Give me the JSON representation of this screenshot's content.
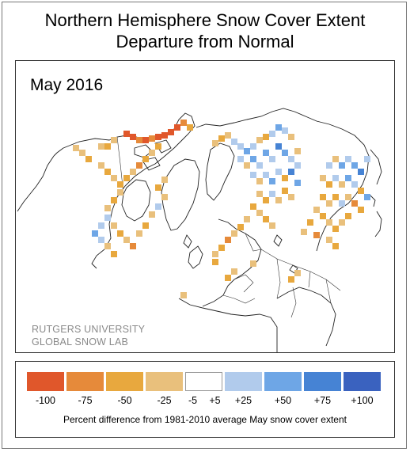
{
  "title_line1": "Northern Hemisphere Snow Cover Extent",
  "title_line2": "Departure from Normal",
  "date_label": "May 2016",
  "credit_line1": "RUTGERS UNIVERSITY",
  "credit_line2": "GLOBAL SNOW LAB",
  "legend": {
    "swatches": [
      {
        "color": "#e0572b"
      },
      {
        "color": "#e68a3a"
      },
      {
        "color": "#e8a83e"
      },
      {
        "color": "#e9c07c"
      },
      {
        "color": "#ffffff"
      },
      {
        "color": "#b1cbec"
      },
      {
        "color": "#6ea6e6"
      },
      {
        "color": "#4683d4"
      },
      {
        "color": "#3a62bf"
      }
    ],
    "labels": [
      "-100",
      "-75",
      "-50",
      "-25",
      "-5",
      "+5",
      "+25",
      "+50",
      "+75",
      "+100"
    ],
    "caption": "Percent difference from 1981-2010 average May snow cover extent"
  }
}
